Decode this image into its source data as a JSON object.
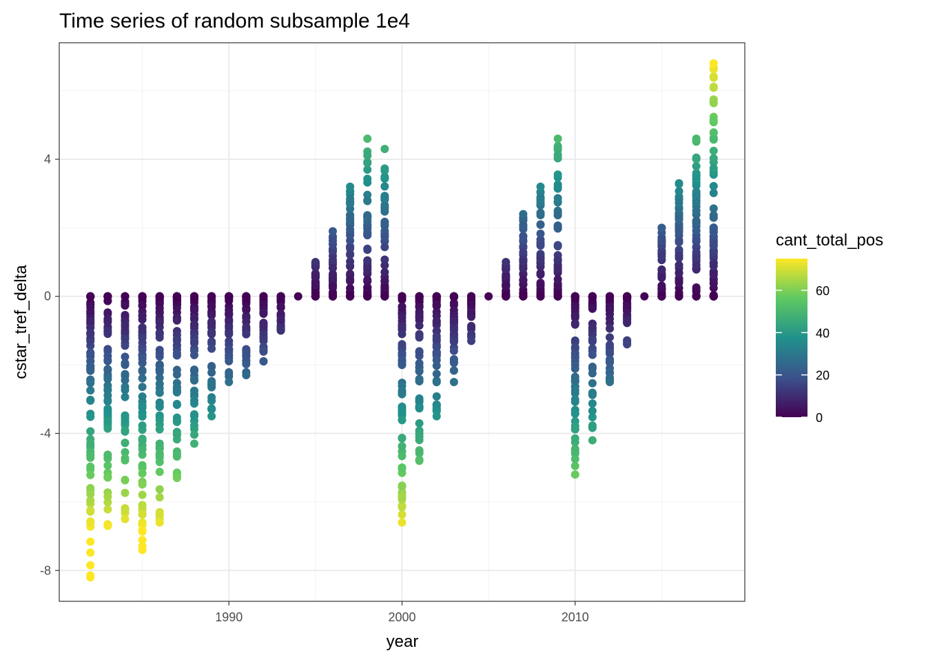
{
  "chart_data": {
    "type": "scatter",
    "title": "Time series of random subsample 1e4",
    "xlabel": "year",
    "ylabel": "cstar_tref_delta",
    "xlim": [
      1980.2,
      2019.8
    ],
    "ylim": [
      -8.9,
      7.4
    ],
    "x_ticks": [
      1990,
      2000,
      2010
    ],
    "x_tick_labels": [
      "1990",
      "2000",
      "2010"
    ],
    "y_ticks": [
      -8,
      -4,
      0,
      4
    ],
    "y_tick_labels": [
      "-8",
      "-4",
      "0",
      "4"
    ],
    "grid": true,
    "legend": {
      "title": "cant_total_pos",
      "placement": "right",
      "type": "colorbar",
      "range": [
        0,
        75
      ],
      "ticks": [
        0,
        20,
        40,
        60
      ],
      "tick_labels": [
        "0",
        "20",
        "40",
        "60"
      ],
      "colormap": "viridis",
      "colors": [
        "#440154",
        "#3b528b",
        "#21918c",
        "#5ec962",
        "#fde725"
      ]
    },
    "columns": [
      {
        "year": 1982,
        "min": -8.2,
        "max": 0
      },
      {
        "year": 1983,
        "min": -6.7,
        "max": 0
      },
      {
        "year": 1984,
        "min": -6.5,
        "max": -0.2
      },
      {
        "year": 1985,
        "min": -7.4,
        "max": 0
      },
      {
        "year": 1986,
        "min": -6.6,
        "max": 0
      },
      {
        "year": 1987,
        "min": -5.3,
        "max": 0
      },
      {
        "year": 1988,
        "min": -4.3,
        "max": 0
      },
      {
        "year": 1989,
        "min": -3.5,
        "max": 0
      },
      {
        "year": 1990,
        "min": -2.5,
        "max": 0
      },
      {
        "year": 1991,
        "min": -2.3,
        "max": 0
      },
      {
        "year": 1992,
        "min": -1.9,
        "max": 0
      },
      {
        "year": 1993,
        "min": -1.0,
        "max": 0
      },
      {
        "year": 1994,
        "min": 0,
        "max": 0
      },
      {
        "year": 1995,
        "min": 0,
        "max": 1.0
      },
      {
        "year": 1996,
        "min": 0,
        "max": 1.9
      },
      {
        "year": 1997,
        "min": 0,
        "max": 3.2
      },
      {
        "year": 1998,
        "min": 0,
        "max": 4.6
      },
      {
        "year": 1999,
        "min": 0,
        "max": 4.3
      },
      {
        "year": 2000,
        "min": -6.6,
        "max": 0
      },
      {
        "year": 2001,
        "min": -4.8,
        "max": 0
      },
      {
        "year": 2002,
        "min": -3.5,
        "max": 0
      },
      {
        "year": 2003,
        "min": -2.5,
        "max": 0
      },
      {
        "year": 2004,
        "min": -1.3,
        "max": 0
      },
      {
        "year": 2005,
        "min": 0,
        "max": 0
      },
      {
        "year": 2006,
        "min": 0,
        "max": 1.0
      },
      {
        "year": 2007,
        "min": 0,
        "max": 2.4
      },
      {
        "year": 2008,
        "min": 0,
        "max": 3.2
      },
      {
        "year": 2009,
        "min": 0,
        "max": 4.6
      },
      {
        "year": 2010,
        "min": -5.2,
        "max": 0
      },
      {
        "year": 2011,
        "min": -4.2,
        "max": 0
      },
      {
        "year": 2012,
        "min": -2.5,
        "max": 0
      },
      {
        "year": 2013,
        "min": -1.4,
        "max": 0
      },
      {
        "year": 2014,
        "min": 0,
        "max": 0
      },
      {
        "year": 2015,
        "min": 0,
        "max": 2.0
      },
      {
        "year": 2016,
        "min": 0,
        "max": 3.3
      },
      {
        "year": 2017,
        "min": 0,
        "max": 4.6
      },
      {
        "year": 2018,
        "min": 0,
        "max": 6.8
      }
    ]
  }
}
